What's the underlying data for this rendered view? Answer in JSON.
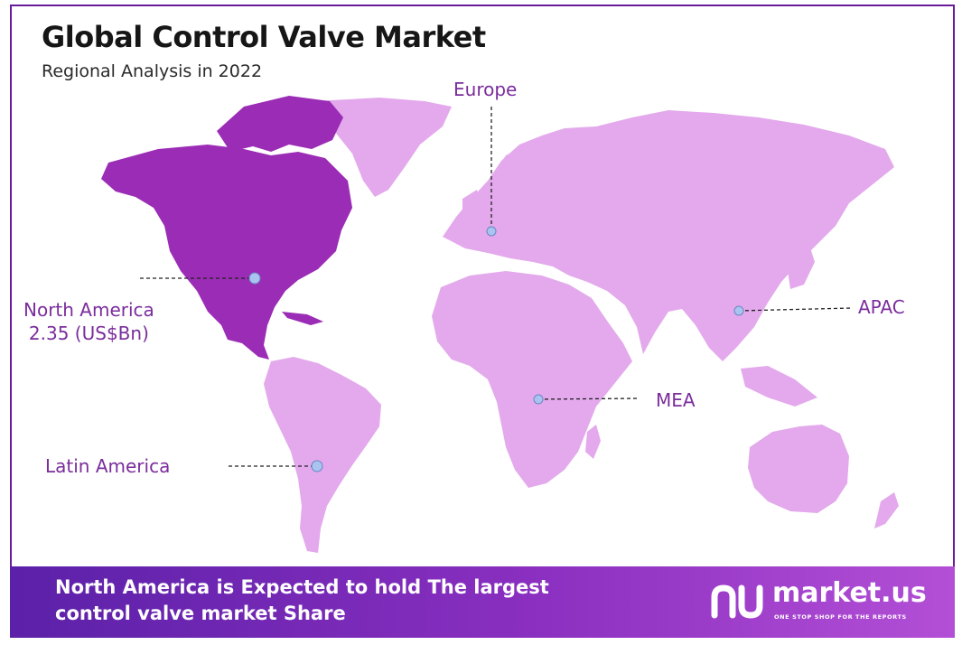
{
  "header": {
    "title": "Global Control Valve Market",
    "subtitle": "Regional Analysis in 2022"
  },
  "regions": {
    "europe": {
      "label": "Europe"
    },
    "north_america": {
      "label": "North America",
      "value_label": "2.35 (US$Bn)",
      "highlighted": true
    },
    "apac": {
      "label": "APAC"
    },
    "mea": {
      "label": "MEA"
    },
    "latin_america": {
      "label": "Latin America"
    }
  },
  "footer": {
    "line1": "North America is Expected to hold The largest",
    "line2": "control valve market Share"
  },
  "brand": {
    "name": "market.us",
    "tagline": "ONE STOP SHOP FOR THE REPORTS"
  },
  "colors": {
    "highlight_region": "#9b2cb5",
    "other_regions": "#e3a9ec",
    "label_text": "#7b2d9c",
    "marker": "#a9c4ee",
    "frame": "#6a1b9a",
    "footer_start": "#5b21a8",
    "footer_end": "#b34fd6"
  }
}
